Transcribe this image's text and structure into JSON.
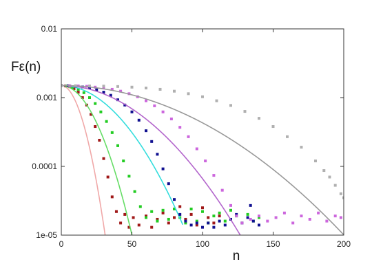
{
  "chart_data": {
    "type": "scatter",
    "title": "",
    "xlabel": "n",
    "ylabel": "Fε(n)",
    "xlim": [
      0,
      200
    ],
    "ylim": [
      1e-05,
      0.01
    ],
    "y_scale": "log",
    "grid": false,
    "legend": "none",
    "x_ticks": [
      0,
      50,
      100,
      150,
      200
    ],
    "x_tick_labels": [
      "0",
      "50",
      "100",
      "150",
      "200"
    ],
    "y_ticks": [
      1e-05,
      0.0001,
      0.001,
      0.01
    ],
    "y_tick_labels": [
      "1e-05",
      "0.0001",
      "0.001",
      "0.01"
    ],
    "series": [
      {
        "color": "#a01818",
        "fit_color": "#f0a8a8",
        "fit": {
          "A": 0.0015,
          "c": 0.0052,
          "n_max": 32
        },
        "points": [
          [
            0,
            0.0015
          ],
          [
            3,
            0.00148
          ],
          [
            6,
            0.00144
          ],
          [
            9,
            0.00135
          ],
          [
            12,
            0.0012
          ],
          [
            15,
            0.001
          ],
          [
            18,
            0.00078
          ],
          [
            21,
            0.00057
          ],
          [
            24,
            0.00038
          ],
          [
            27,
            0.00024
          ],
          [
            30,
            0.00013
          ],
          [
            33,
            7e-05
          ],
          [
            36,
            3.6e-05
          ],
          [
            39,
            2.2e-05
          ],
          [
            42,
            1.5e-05
          ],
          [
            45,
            2e-05
          ],
          [
            48,
            1.3e-05
          ],
          [
            51,
            1.8e-05
          ],
          [
            55,
            1.4e-05
          ],
          [
            60,
            1.9e-05
          ],
          [
            64,
            1.3e-05
          ],
          [
            68,
            1.7e-05
          ],
          [
            72,
            2.1e-05
          ],
          [
            76,
            1.5e-05
          ],
          [
            80,
            1.8e-05
          ],
          [
            84,
            2.6e-05
          ],
          [
            88,
            1.7e-05
          ],
          [
            92,
            2e-05
          ],
          [
            96,
            1.4e-05
          ],
          [
            100,
            2.5e-05
          ],
          [
            104,
            1.8e-05
          ],
          [
            108,
            1.5e-05
          ],
          [
            112,
            1.9e-05
          ]
        ]
      },
      {
        "color": "#22cc22",
        "fit_color": "#66dd66",
        "fit": {
          "A": 0.0015,
          "c": 0.002,
          "n_max": 52
        },
        "points": [
          [
            0,
            0.0015
          ],
          [
            4,
            0.00148
          ],
          [
            8,
            0.00142
          ],
          [
            12,
            0.00132
          ],
          [
            16,
            0.00118
          ],
          [
            20,
            0.001
          ],
          [
            24,
            0.00082
          ],
          [
            28,
            0.00062
          ],
          [
            32,
            0.00045
          ],
          [
            36,
            0.00031
          ],
          [
            40,
            0.0002
          ],
          [
            44,
            0.00012
          ],
          [
            48,
            7.2e-05
          ],
          [
            52,
            4.3e-05
          ],
          [
            56,
            2.6e-05
          ],
          [
            60,
            1.8e-05
          ],
          [
            64,
            2.2e-05
          ],
          [
            68,
            1.6e-05
          ],
          [
            72,
            2.3e-05
          ],
          [
            76,
            1.7e-05
          ],
          [
            80,
            2.4e-05
          ],
          [
            84,
            1.8e-05
          ],
          [
            88,
            1.5e-05
          ],
          [
            92,
            2.4e-05
          ],
          [
            96,
            1.6e-05
          ],
          [
            100,
            2.2e-05
          ],
          [
            104,
            1.5e-05
          ],
          [
            108,
            1.9e-05
          ],
          [
            112,
            2.1e-05
          ],
          [
            116,
            1.6e-05
          ],
          [
            120,
            2.3e-05
          ],
          [
            124,
            1.9e-05
          ],
          [
            128,
            1.5e-05
          ],
          [
            132,
            2e-05
          ],
          [
            136,
            1.6e-05
          ],
          [
            140,
            1.8e-05
          ]
        ]
      },
      {
        "color": "#101090",
        "fit_color": "#33dddd",
        "fit": {
          "A": 0.0015,
          "c": 0.00063,
          "n_max": 86
        },
        "points": [
          [
            0,
            0.0015
          ],
          [
            5,
            0.00149
          ],
          [
            10,
            0.00147
          ],
          [
            15,
            0.00143
          ],
          [
            20,
            0.00138
          ],
          [
            25,
            0.0013
          ],
          [
            30,
            0.0012
          ],
          [
            35,
            0.00108
          ],
          [
            40,
            0.00093
          ],
          [
            45,
            0.00078
          ],
          [
            50,
            0.00062
          ],
          [
            55,
            0.00047
          ],
          [
            60,
            0.00033
          ],
          [
            64,
            0.00023
          ],
          [
            68,
            0.00015
          ],
          [
            72,
            9.2e-05
          ],
          [
            76,
            5.6e-05
          ],
          [
            80,
            3.3e-05
          ],
          [
            84,
            2e-05
          ],
          [
            88,
            1.6e-05
          ],
          [
            92,
            1.4e-05
          ],
          [
            96,
            1.5e-05
          ],
          [
            100,
            1.3e-05
          ],
          [
            104,
            1.5e-05
          ],
          [
            108,
            1.3e-05
          ],
          [
            112,
            1.6e-05
          ],
          [
            116,
            1.4e-05
          ],
          [
            120,
            1.7e-05
          ],
          [
            124,
            2e-05
          ],
          [
            128,
            1.5e-05
          ],
          [
            132,
            1.8e-05
          ],
          [
            134,
            2.7e-05
          ],
          [
            136,
            1.6e-05
          ],
          [
            140,
            1.4e-05
          ]
        ]
      },
      {
        "color": "#cc66dd",
        "fit_color": "#b366cc",
        "fit": {
          "A": 0.0015,
          "c": 0.000312,
          "n_max": 133
        },
        "points": [
          [
            0,
            0.0015
          ],
          [
            6,
            0.00149
          ],
          [
            12,
            0.00148
          ],
          [
            18,
            0.00146
          ],
          [
            24,
            0.00142
          ],
          [
            30,
            0.00138
          ],
          [
            36,
            0.00132
          ],
          [
            42,
            0.00124
          ],
          [
            48,
            0.00114
          ],
          [
            54,
            0.00103
          ],
          [
            60,
            0.0009
          ],
          [
            66,
            0.00076
          ],
          [
            72,
            0.00062
          ],
          [
            78,
            0.00049
          ],
          [
            84,
            0.00037
          ],
          [
            90,
            0.00027
          ],
          [
            96,
            0.00018
          ],
          [
            102,
            0.00012
          ],
          [
            108,
            7.4e-05
          ],
          [
            114,
            4.5e-05
          ],
          [
            120,
            2.7e-05
          ],
          [
            124,
            1.9e-05
          ],
          [
            128,
            1.5e-05
          ],
          [
            134,
            1.7e-05
          ],
          [
            140,
            1.9e-05
          ],
          [
            146,
            1.6e-05
          ],
          [
            152,
            1.8e-05
          ],
          [
            158,
            2.1e-05
          ],
          [
            164,
            1.5e-05
          ],
          [
            170,
            1.9e-05
          ],
          [
            176,
            1.7e-05
          ],
          [
            182,
            2.1e-05
          ],
          [
            188,
            1.6e-05
          ],
          [
            194,
            1.9e-05
          ],
          [
            198,
            1.8e-05
          ]
        ]
      },
      {
        "color": "#b0b0b0",
        "fit_color": "#999999",
        "fit": {
          "A": 0.0015,
          "c": 0.000125,
          "n_max": 200
        },
        "points": [
          [
            0,
            0.0015
          ],
          [
            10,
            0.00149
          ],
          [
            20,
            0.00148
          ],
          [
            30,
            0.00147
          ],
          [
            40,
            0.00145
          ],
          [
            50,
            0.00142
          ],
          [
            60,
            0.00138
          ],
          [
            70,
            0.00132
          ],
          [
            80,
            0.00124
          ],
          [
            90,
            0.00114
          ],
          [
            100,
            0.00103
          ],
          [
            110,
            0.0009
          ],
          [
            120,
            0.00077
          ],
          [
            130,
            0.00063
          ],
          [
            140,
            0.0005
          ],
          [
            150,
            0.00038
          ],
          [
            160,
            0.00027
          ],
          [
            170,
            0.00019
          ],
          [
            180,
            0.00012
          ],
          [
            186,
            8.7e-05
          ],
          [
            190,
            7e-05
          ],
          [
            194,
            5.3e-05
          ],
          [
            198,
            4e-05
          ],
          [
            200,
            3.5e-05
          ]
        ]
      }
    ]
  }
}
